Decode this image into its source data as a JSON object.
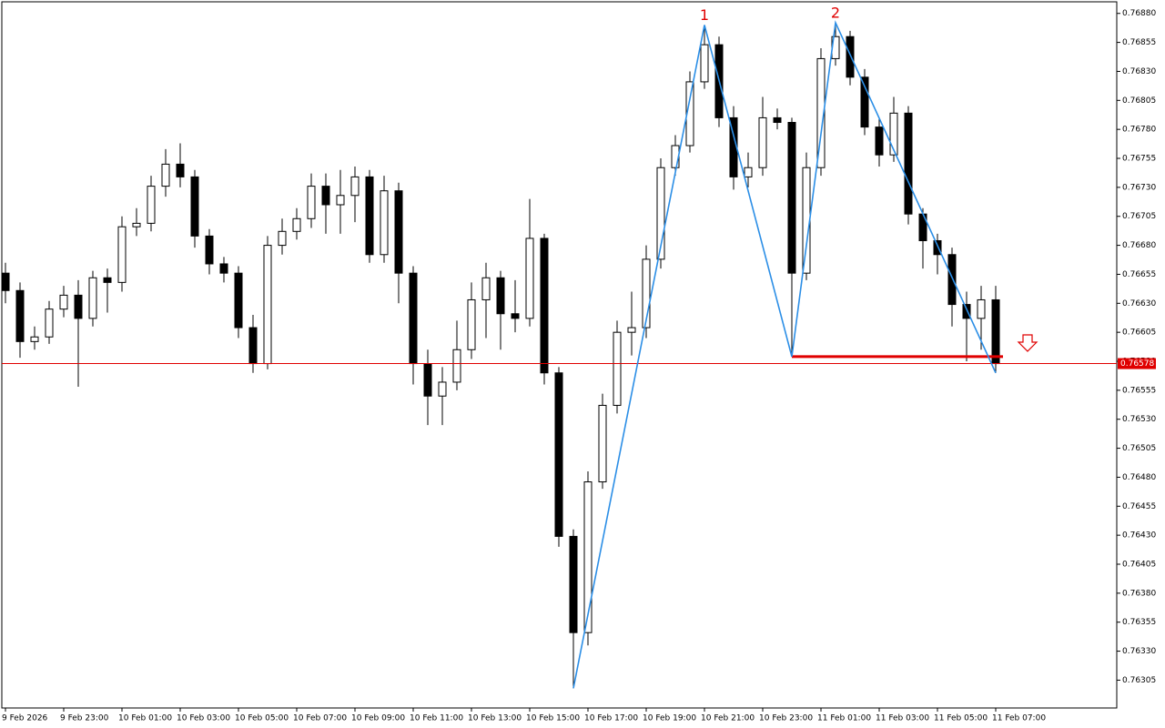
{
  "chart_data": {
    "type": "candlestick",
    "categories": [
      "9 Feb 2026",
      null,
      null,
      null,
      "9 Feb 23:00",
      null,
      null,
      null,
      "10 Feb 01:00",
      null,
      null,
      null,
      "10 Feb 03:00",
      null,
      null,
      null,
      "10 Feb 05:00",
      null,
      null,
      null,
      "10 Feb 07:00",
      null,
      null,
      null,
      "10 Feb 09:00",
      null,
      null,
      null,
      "10 Feb 11:00",
      null,
      null,
      null,
      "10 Feb 13:00",
      null,
      null,
      null,
      "10 Feb 15:00",
      null,
      null,
      null,
      "10 Feb 17:00",
      null,
      null,
      null,
      "10 Feb 19:00",
      null,
      null,
      null,
      "10 Feb 21:00",
      null,
      null,
      null,
      "10 Feb 23:00",
      null,
      null,
      null,
      "11 Feb 01:00",
      null,
      null,
      null,
      "11 Feb 03:00",
      null,
      null,
      null,
      "11 Feb 05:00",
      null,
      null,
      null,
      "11 Feb 07:00"
    ],
    "open": [
      0.76656,
      0.76641,
      0.76597,
      0.76601,
      0.76625,
      0.76637,
      0.76617,
      0.76652,
      0.76648,
      0.76696,
      0.76699,
      0.76731,
      0.7675,
      0.76739,
      0.76688,
      0.76664,
      0.76656,
      0.76609,
      0.76578,
      0.7668,
      0.76692,
      0.76703,
      0.76731,
      0.76715,
      0.76723,
      0.76739,
      0.76672,
      0.76727,
      0.76656,
      0.76578,
      0.7655,
      0.76562,
      0.7659,
      0.76633,
      0.76652,
      0.76621,
      0.76617,
      0.76686,
      0.7657,
      0.76429,
      0.76346,
      0.76476,
      0.76542,
      0.76605,
      0.76609,
      0.76668,
      0.76747,
      0.76766,
      0.76821,
      0.76853,
      0.7679,
      0.76739,
      0.76747,
      0.7679,
      0.76786,
      0.76656,
      0.76747,
      0.76841,
      0.7686,
      0.76825,
      0.76782,
      0.76758,
      0.76794,
      0.76707,
      0.76684,
      0.76672,
      0.76629,
      0.76617,
      0.76633
    ],
    "high": [
      0.76665,
      0.76648,
      0.7661,
      0.76632,
      0.76645,
      0.7665,
      0.76658,
      0.7666,
      0.76705,
      0.76712,
      0.7674,
      0.76763,
      0.76768,
      0.76745,
      0.76694,
      0.7667,
      0.76662,
      0.7662,
      0.76688,
      0.76703,
      0.76712,
      0.76742,
      0.76742,
      0.76745,
      0.76748,
      0.76745,
      0.7674,
      0.76734,
      0.76662,
      0.7659,
      0.76575,
      0.76615,
      0.76648,
      0.76665,
      0.76658,
      0.7665,
      0.7672,
      0.7669,
      0.76575,
      0.76435,
      0.76485,
      0.76552,
      0.76615,
      0.7664,
      0.7668,
      0.76755,
      0.76775,
      0.7683,
      0.7687,
      0.7686,
      0.768,
      0.7676,
      0.76808,
      0.76798,
      0.7679,
      0.7676,
      0.7685,
      0.76872,
      0.76865,
      0.76832,
      0.7679,
      0.76808,
      0.768,
      0.76712,
      0.7669,
      0.76678,
      0.7664,
      0.76645,
      0.76645
    ],
    "low": [
      0.7663,
      0.76583,
      0.7659,
      0.76595,
      0.76618,
      0.76558,
      0.7661,
      0.76622,
      0.7664,
      0.76688,
      0.76692,
      0.76722,
      0.7673,
      0.76678,
      0.76655,
      0.76648,
      0.766,
      0.7657,
      0.76573,
      0.76672,
      0.76685,
      0.76695,
      0.7669,
      0.7669,
      0.767,
      0.76665,
      0.76665,
      0.7663,
      0.7656,
      0.76525,
      0.76525,
      0.76555,
      0.76582,
      0.766,
      0.7659,
      0.76605,
      0.7661,
      0.7656,
      0.7642,
      0.76298,
      0.76335,
      0.7647,
      0.76535,
      0.76585,
      0.766,
      0.7666,
      0.7674,
      0.7676,
      0.76815,
      0.76782,
      0.76728,
      0.7673,
      0.7674,
      0.7678,
      0.76584,
      0.7665,
      0.7674,
      0.76835,
      0.76818,
      0.76775,
      0.76748,
      0.76752,
      0.76698,
      0.7666,
      0.76655,
      0.7661,
      0.7658,
      0.7659,
      0.7657
    ],
    "close": [
      0.76641,
      0.76597,
      0.76601,
      0.76625,
      0.76637,
      0.76617,
      0.76652,
      0.76648,
      0.76696,
      0.76699,
      0.76731,
      0.7675,
      0.76739,
      0.76688,
      0.76664,
      0.76656,
      0.76609,
      0.76578,
      0.7668,
      0.76692,
      0.76703,
      0.76731,
      0.76715,
      0.76723,
      0.76739,
      0.76672,
      0.76727,
      0.76656,
      0.76578,
      0.7655,
      0.76562,
      0.7659,
      0.76633,
      0.76652,
      0.76621,
      0.76617,
      0.76686,
      0.7657,
      0.76429,
      0.76346,
      0.76476,
      0.76542,
      0.76605,
      0.76609,
      0.76668,
      0.76747,
      0.76766,
      0.76821,
      0.76853,
      0.7679,
      0.76739,
      0.76747,
      0.7679,
      0.76786,
      0.76656,
      0.76747,
      0.76841,
      0.7686,
      0.76825,
      0.76782,
      0.76758,
      0.76794,
      0.76707,
      0.76684,
      0.76672,
      0.76629,
      0.76617,
      0.76633,
      0.76578
    ],
    "ylim": [
      0.76281,
      0.7689
    ],
    "yticks": [
      {
        "value": 0.7688,
        "label": "0.76880"
      },
      0.76855,
      {
        "value": 0.7683,
        "label": "0.76830"
      },
      0.76805,
      {
        "value": 0.7678,
        "label": "0.76780"
      },
      0.76755,
      {
        "value": 0.7673,
        "label": "0.76730"
      },
      0.76705,
      {
        "value": 0.7668,
        "label": "0.76680"
      },
      0.76655,
      {
        "value": 0.7663,
        "label": "0.76630"
      },
      0.76605,
      {
        "value": 0.7658,
        "label": "0.76580"
      },
      0.76555,
      {
        "value": 0.7653,
        "label": "0.76530"
      },
      0.76505,
      {
        "value": 0.7648,
        "label": "0.76480"
      },
      0.76455,
      {
        "value": 0.7643,
        "label": "0.76430"
      },
      0.76405,
      {
        "value": 0.7638,
        "label": "0.76380"
      },
      0.76355,
      {
        "value": 0.7633,
        "label": "0.76330"
      },
      0.76305
    ],
    "current_price": 0.76578,
    "current_price_color": "#e00000",
    "zigzag": {
      "color": "#2b8ee6",
      "x": [
        39,
        48,
        54,
        57,
        68
      ],
      "values": [
        0.76298,
        0.7687,
        0.76584,
        0.76872,
        0.7657
      ],
      "labels": [
        null,
        "1",
        null,
        "2",
        null
      ],
      "label_color": "#e00000"
    },
    "neckline": {
      "color": "#e00000",
      "value": 0.76584,
      "x": [
        54,
        68
      ]
    }
  }
}
